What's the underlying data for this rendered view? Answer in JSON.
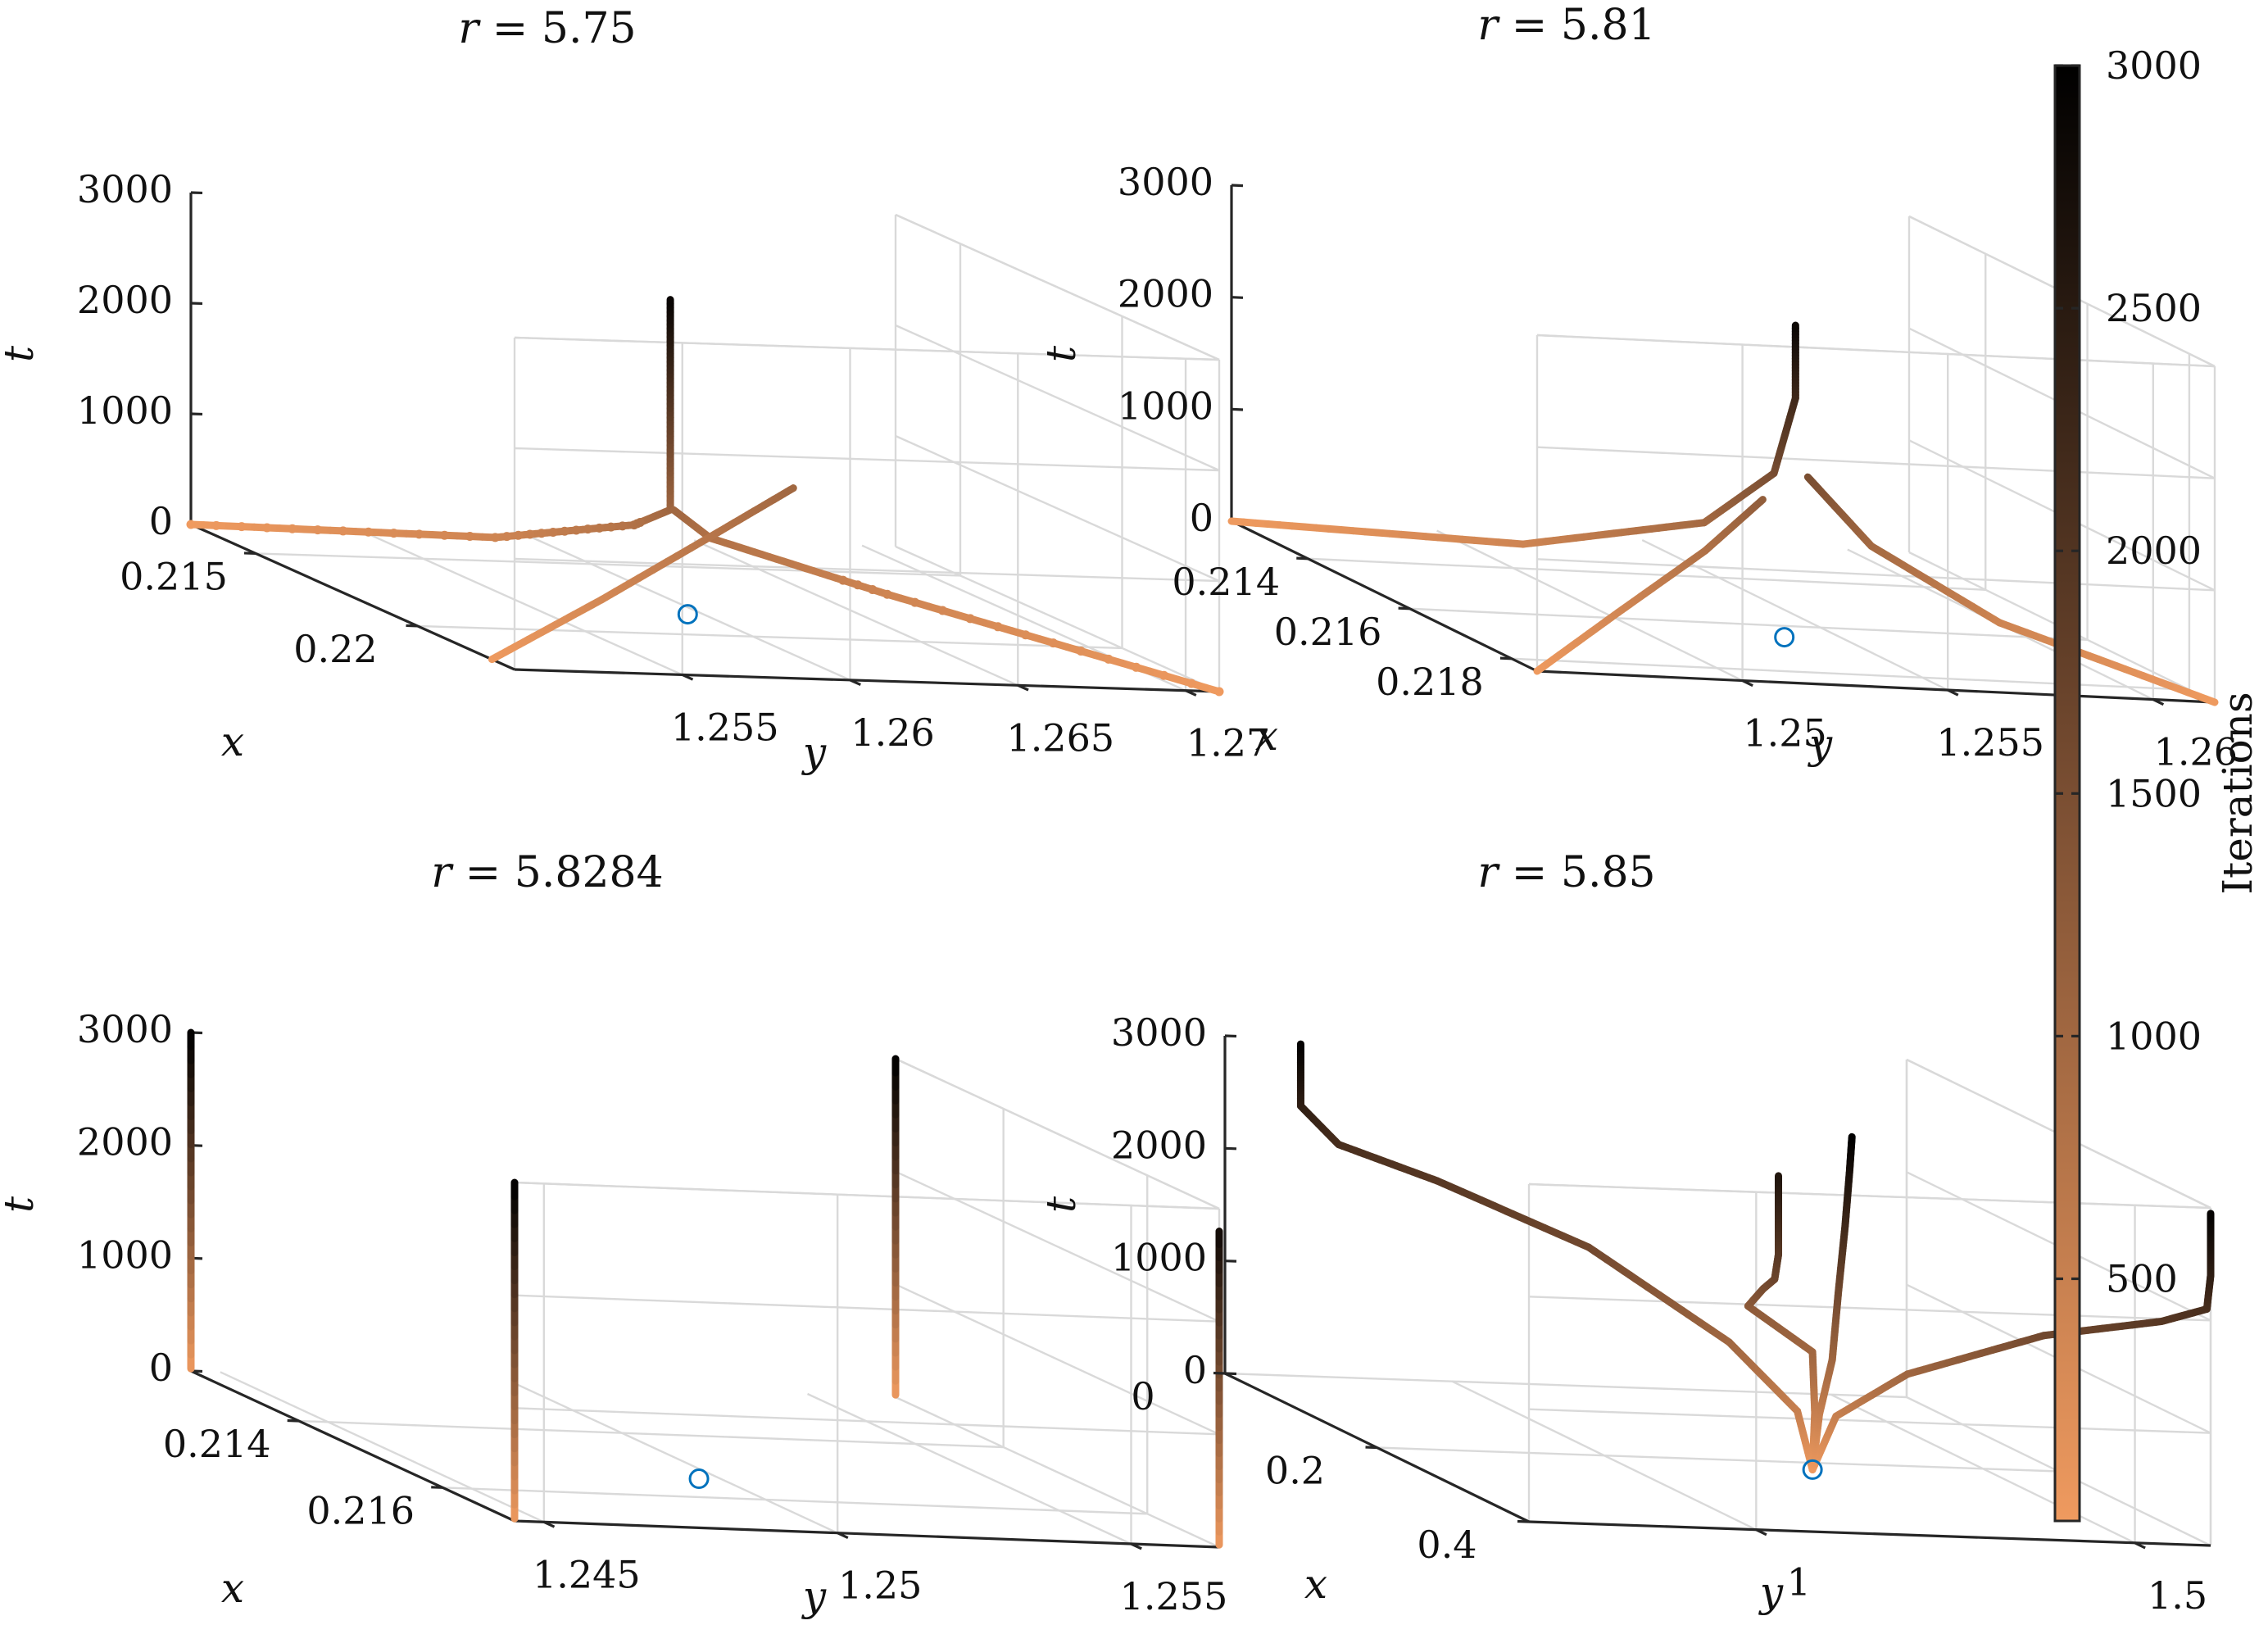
{
  "colors": {
    "start": "#ef9a5f",
    "mid": "#7a4e32",
    "end": "#000000",
    "marker": "#0072bd",
    "axis": "#262626",
    "grid": "#d9d9d9"
  },
  "colorbar": {
    "label": "Iterations",
    "min": 1,
    "max": 3000,
    "ticks": [
      {
        "value": 500,
        "label": "500"
      },
      {
        "value": 1000,
        "label": "1000"
      },
      {
        "value": 1500,
        "label": "1500"
      },
      {
        "value": 2000,
        "label": "2000"
      },
      {
        "value": 2500,
        "label": "2500"
      },
      {
        "value": 3000,
        "label": "3000"
      }
    ]
  },
  "chart_data": [
    {
      "type": "line3d",
      "title": "r = 5.75",
      "title_var": "r",
      "title_value": "5.75",
      "xlabel": "x",
      "ylabel": "y",
      "zlabel": "t",
      "xlim": [
        0.213,
        0.223
      ],
      "ylim": [
        1.25,
        1.271
      ],
      "zlim": [
        0,
        3000
      ],
      "x_ticks": [
        {
          "v": 0.215,
          "label": "0.215"
        },
        {
          "v": 0.22,
          "label": "0.22"
        }
      ],
      "y_ticks": [
        {
          "v": 1.255,
          "label": "1.255"
        },
        {
          "v": 1.26,
          "label": "1.26"
        },
        {
          "v": 1.265,
          "label": "1.265"
        },
        {
          "v": 1.27,
          "label": "1.27"
        }
      ],
      "z_ticks": [
        {
          "v": 0,
          "label": "0"
        },
        {
          "v": 1000,
          "label": "1000"
        },
        {
          "v": 2000,
          "label": "2000"
        },
        {
          "v": 3000,
          "label": "3000"
        }
      ],
      "fixed_point": {
        "x": 0.2185,
        "y": 1.2595,
        "t": 0
      },
      "trajectories": [
        {
          "name": "branch-1",
          "dotted": true,
          "points": [
            [
              0.213,
              1.25,
              0
            ],
            [
              0.2167,
              1.2555,
              420
            ],
            [
              0.2184,
              1.258,
              780
            ],
            [
              0.219,
              1.2585,
              1000
            ],
            [
              0.219,
              1.2585,
              2000
            ],
            [
              0.219,
              1.2585,
              2900
            ]
          ]
        },
        {
          "name": "branch-2",
          "dotted": true,
          "points": [
            [
              0.223,
              1.271,
              0
            ],
            [
              0.22,
              1.264,
              420
            ],
            [
              0.2192,
              1.2595,
              780
            ],
            [
              0.219,
              1.2586,
              1000
            ]
          ]
        },
        {
          "name": "branch-3",
          "dotted": false,
          "points": [
            [
              0.2223,
              1.25,
              0
            ],
            [
              0.2205,
              1.255,
              350
            ],
            [
              0.2185,
              1.2603,
              730
            ],
            [
              0.2171,
              1.264,
              1000
            ]
          ]
        }
      ]
    },
    {
      "type": "line3d",
      "title": "r = 5.81",
      "title_var": "r",
      "title_value": "5.81",
      "xlabel": "x",
      "ylabel": "y",
      "zlabel": "t",
      "xlim": [
        0.2125,
        0.2185
      ],
      "ylim": [
        1.245,
        1.2615
      ],
      "zlim": [
        0,
        3000
      ],
      "x_ticks": [
        {
          "v": 0.214,
          "label": "0.214"
        },
        {
          "v": 0.216,
          "label": "0.216"
        },
        {
          "v": 0.218,
          "label": "0.218"
        }
      ],
      "y_ticks": [
        {
          "v": 1.25,
          "label": "1.25"
        },
        {
          "v": 1.255,
          "label": "1.255"
        },
        {
          "v": 1.26,
          "label": "1.26"
        }
      ],
      "z_ticks": [
        {
          "v": 0,
          "label": "0"
        },
        {
          "v": 1000,
          "label": "1000"
        },
        {
          "v": 2000,
          "label": "2000"
        },
        {
          "v": 3000,
          "label": "3000"
        }
      ],
      "fixed_point": {
        "x": 0.2165,
        "y": 1.2535,
        "t": 0
      },
      "trajectories": [
        {
          "name": "branch-1",
          "dotted": false,
          "points": [
            [
              0.2125,
              1.245,
              0
            ],
            [
              0.215,
              1.249,
              420
            ],
            [
              0.2163,
              1.2518,
              950
            ],
            [
              0.2167,
              1.253,
              1500
            ],
            [
              0.2168,
              1.2534,
              2200
            ],
            [
              0.2168,
              1.2534,
              2850
            ]
          ]
        },
        {
          "name": "branch-2",
          "dotted": false,
          "points": [
            [
              0.2185,
              1.2615,
              0
            ],
            [
              0.2175,
              1.2575,
              420
            ],
            [
              0.217,
              1.255,
              950
            ],
            [
              0.2168,
              1.2537,
              1500
            ]
          ]
        },
        {
          "name": "branch-3",
          "dotted": false,
          "points": [
            [
              0.2185,
              1.245,
              0
            ],
            [
              0.2176,
              1.248,
              350
            ],
            [
              0.2168,
              1.2512,
              800
            ],
            [
              0.2164,
              1.2531,
              1200
            ]
          ]
        }
      ]
    },
    {
      "type": "line3d",
      "title": "r = 5.8284",
      "title_var": "r",
      "title_value": "5.8284",
      "xlabel": "x",
      "ylabel": "y",
      "zlabel": "t",
      "xlim": [
        0.2125,
        0.217
      ],
      "ylim": [
        1.2445,
        1.2565
      ],
      "zlim": [
        0,
        3000
      ],
      "x_ticks": [
        {
          "v": 0.214,
          "label": "0.214"
        },
        {
          "v": 0.216,
          "label": "0.216"
        }
      ],
      "y_ticks": [
        {
          "v": 1.245,
          "label": "1.245"
        },
        {
          "v": 1.25,
          "label": "1.25"
        },
        {
          "v": 1.255,
          "label": "1.255"
        }
      ],
      "z_ticks": [
        {
          "v": 0,
          "label": "0"
        },
        {
          "v": 1000,
          "label": "1000"
        },
        {
          "v": 2000,
          "label": "2000"
        },
        {
          "v": 3000,
          "label": "3000"
        }
      ],
      "fixed_point": {
        "x": 0.2154,
        "y": 1.2496,
        "t": 0
      },
      "trajectories": [
        {
          "name": "line-1",
          "dotted": false,
          "points": [
            [
              0.2125,
              1.2445,
              20
            ],
            [
              0.2125,
              1.2445,
              3000
            ]
          ]
        },
        {
          "name": "line-2",
          "dotted": false,
          "points": [
            [
              0.217,
              1.2565,
              20
            ],
            [
              0.217,
              1.2565,
              2800
            ]
          ]
        },
        {
          "name": "line-3",
          "dotted": false,
          "points": [
            [
              0.217,
              1.2445,
              20
            ],
            [
              0.217,
              1.2445,
              3000
            ]
          ]
        },
        {
          "name": "line-4",
          "dotted": false,
          "points": [
            [
              0.2125,
              1.2565,
              20
            ],
            [
              0.2125,
              1.2565,
              3000
            ]
          ]
        }
      ]
    },
    {
      "type": "line3d",
      "title": "r = 5.85",
      "title_var": "r",
      "title_value": "5.85",
      "xlabel": "x",
      "ylabel": "y",
      "zlabel": "t",
      "xlim": [
        0,
        0.4
      ],
      "ylim": [
        0.7,
        1.6
      ],
      "zlim": [
        0,
        3000
      ],
      "x_ticks": [
        {
          "v": 0,
          "label": "0"
        },
        {
          "v": 0.2,
          "label": "0.2"
        },
        {
          "v": 0.4,
          "label": "0.4"
        }
      ],
      "y_ticks": [
        {
          "v": 1,
          "label": "1"
        },
        {
          "v": 1.5,
          "label": "1.5"
        }
      ],
      "z_ticks": [
        {
          "v": 0,
          "label": "0"
        },
        {
          "v": 1000,
          "label": "1000"
        },
        {
          "v": 2000,
          "label": "2000"
        },
        {
          "v": 3000,
          "label": "3000"
        }
      ],
      "fixed_point": {
        "x": 0.22,
        "y": 1.255,
        "t": 0
      },
      "trajectories": [
        {
          "name": "branch-1",
          "dotted": false,
          "points": [
            [
              0.22,
              1.255,
              0
            ],
            [
              0.215,
              1.24,
              500
            ],
            [
              0.185,
              1.18,
              1000
            ],
            [
              0.12,
              1.06,
              1600
            ],
            [
              0.05,
              0.93,
              1930
            ],
            [
              0.01,
              0.84,
              2100
            ],
            [
              0.0,
              0.8,
              2400
            ],
            [
              0.0,
              0.8,
              2950
            ]
          ]
        },
        {
          "name": "branch-2",
          "dotted": false,
          "points": [
            [
              0.22,
              1.255,
              0
            ],
            [
              0.226,
              1.28,
              500
            ],
            [
              0.26,
              1.34,
              1000
            ],
            [
              0.33,
              1.45,
              1600
            ],
            [
              0.385,
              1.55,
              1930
            ],
            [
              0.4,
              1.595,
              2100
            ],
            [
              0.4,
              1.6,
              2400
            ],
            [
              0.4,
              1.6,
              2950
            ]
          ]
        },
        {
          "name": "branch-3",
          "dotted": false,
          "points": [
            [
              0.22,
              1.255,
              0
            ],
            [
              0.218,
              1.26,
              500
            ],
            [
              0.205,
              1.27,
              1000
            ],
            [
              0.16,
              1.23,
              1250
            ],
            [
              0.19,
              1.22,
              1500
            ],
            [
              0.21,
              1.215,
              1650
            ],
            [
              0.22,
              1.21,
              1900
            ],
            [
              0.22,
              1.21,
              2600
            ]
          ]
        },
        {
          "name": "branch-4",
          "dotted": false,
          "points": [
            [
              0.22,
              1.255,
              0
            ],
            [
              0.222,
              1.262,
              500
            ],
            [
              0.226,
              1.275,
              1000
            ],
            [
              0.227,
              1.282,
              1600
            ],
            [
              0.228,
              1.29,
              2200
            ],
            [
              0.229,
              1.295,
              2700
            ],
            [
              0.23,
              1.297,
              3000
            ]
          ]
        }
      ]
    }
  ]
}
